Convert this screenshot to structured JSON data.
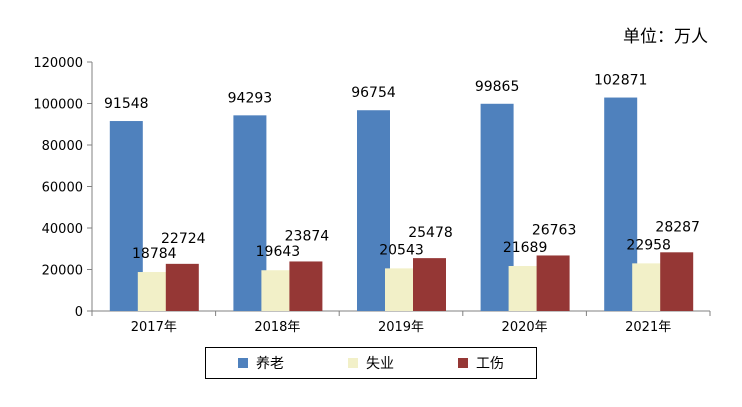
{
  "unit_label": "单位：万人",
  "colors": {
    "pension": "#4f81bd",
    "unemployment": "#f2f0c8",
    "injury": "#953735"
  },
  "chart_data": {
    "type": "bar",
    "title": "",
    "xlabel": "",
    "ylabel": "",
    "ylim": [
      0,
      120000
    ],
    "yticks": [
      0,
      20000,
      40000,
      60000,
      80000,
      100000,
      120000
    ],
    "categories": [
      "2017年",
      "2018年",
      "2019年",
      "2020年",
      "2021年"
    ],
    "legend_position": "bottom",
    "grid": false,
    "series": [
      {
        "name": "养老",
        "values": [
          91548,
          94293,
          96754,
          99865,
          102871
        ]
      },
      {
        "name": "失业",
        "values": [
          18784,
          19643,
          20543,
          21689,
          22958
        ]
      },
      {
        "name": "工伤",
        "values": [
          22724,
          23874,
          25478,
          26763,
          28287
        ]
      }
    ]
  }
}
